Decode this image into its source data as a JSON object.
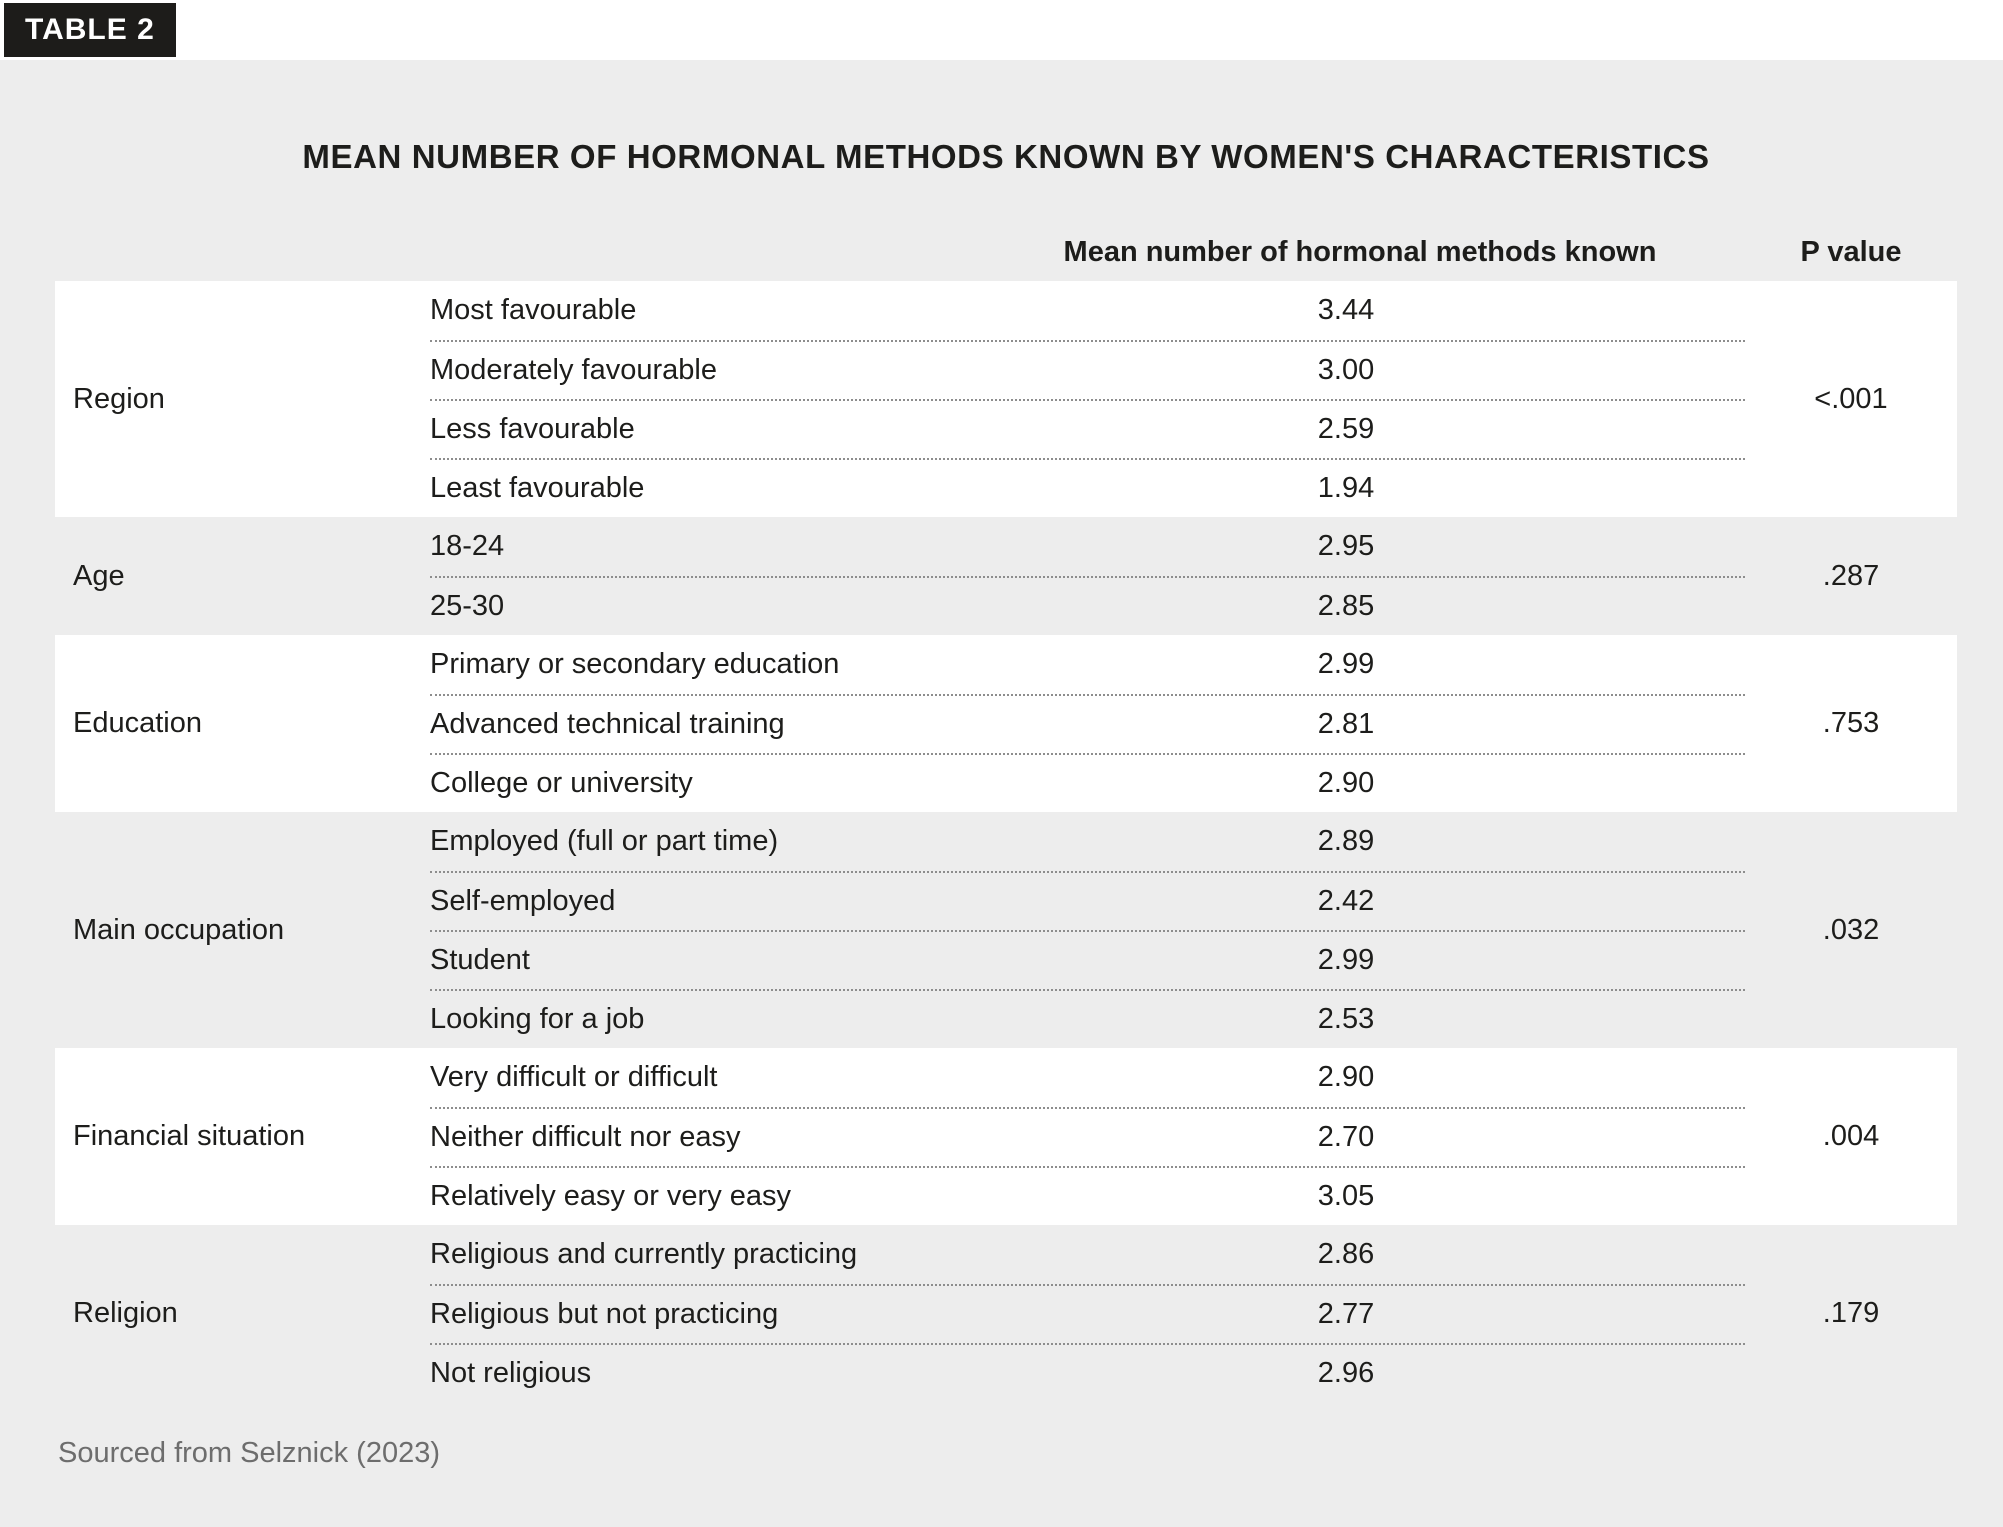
{
  "badge": "TABLE 2",
  "source": "Sourced from Selznick (2023)",
  "colors": {
    "panel_bg": "#ededed",
    "card_bg": "#ffffff",
    "badge_bg": "#1d1c1a",
    "text": "#1d1d1b",
    "muted_text": "#6d6d6d",
    "dotted_rule": "#8d8d8d"
  },
  "chart_data": {
    "type": "table",
    "title": "MEAN NUMBER OF HORMONAL METHODS KNOWN BY WOMEN'S CHARACTERISTICS",
    "columns": {
      "category": "",
      "characteristic": "",
      "mean": "Mean number of hormonal methods known",
      "p": "P value"
    },
    "groups": [
      {
        "label": "Region",
        "p_value": "<.001",
        "rows": [
          {
            "label": "Most favourable",
            "value": "3.44"
          },
          {
            "label": "Moderately favourable",
            "value": "3.00"
          },
          {
            "label": "Less favourable",
            "value": "2.59"
          },
          {
            "label": "Least favourable",
            "value": "1.94"
          }
        ]
      },
      {
        "label": "Age",
        "p_value": ".287",
        "rows": [
          {
            "label": "18-24",
            "value": "2.95"
          },
          {
            "label": "25-30",
            "value": "2.85"
          }
        ]
      },
      {
        "label": "Education",
        "p_value": ".753",
        "rows": [
          {
            "label": "Primary or secondary education",
            "value": "2.99"
          },
          {
            "label": "Advanced technical training",
            "value": "2.81"
          },
          {
            "label": "College or university",
            "value": "2.90"
          }
        ]
      },
      {
        "label": "Main occupation",
        "p_value": ".032",
        "rows": [
          {
            "label": "Employed (full or part time)",
            "value": "2.89"
          },
          {
            "label": "Self-employed",
            "value": "2.42"
          },
          {
            "label": "Student",
            "value": "2.99"
          },
          {
            "label": "Looking for a job",
            "value": "2.53"
          }
        ]
      },
      {
        "label": "Financial situation",
        "p_value": ".004",
        "rows": [
          {
            "label": "Very difficult or difficult",
            "value": "2.90"
          },
          {
            "label": "Neither difficult nor easy",
            "value": "2.70"
          },
          {
            "label": "Relatively easy or very easy",
            "value": "3.05"
          }
        ]
      },
      {
        "label": "Religion",
        "p_value": ".179",
        "rows": [
          {
            "label": "Religious and currently practicing",
            "value": "2.86"
          },
          {
            "label": "Religious but not practicing",
            "value": "2.77"
          },
          {
            "label": "Not religious",
            "value": "2.96"
          }
        ]
      }
    ]
  }
}
